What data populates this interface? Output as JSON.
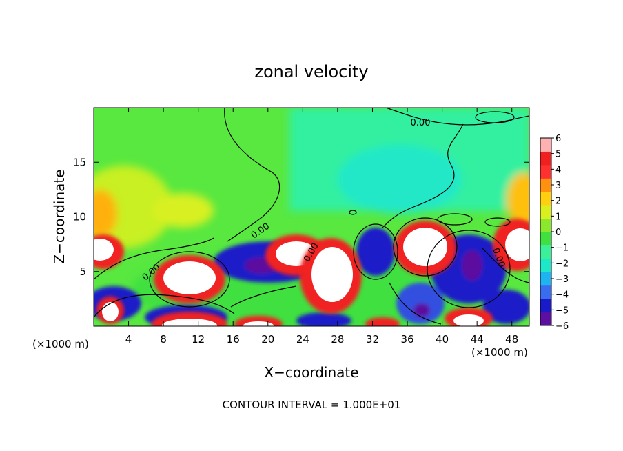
{
  "chart_data": {
    "type": "heatmap",
    "title": "zonal velocity",
    "xlabel": "X−coordinate",
    "ylabel": "Z−coordinate",
    "xunit_left": "(×1000 m)",
    "xunit_right": "(×1000 m)",
    "footer": "CONTOUR INTERVAL = 1.000E+01",
    "xlim": [
      0,
      50
    ],
    "ylim": [
      0,
      20
    ],
    "xticks": [
      4,
      8,
      12,
      16,
      20,
      24,
      28,
      32,
      36,
      40,
      44,
      48
    ],
    "yticks": [
      5,
      10,
      15
    ],
    "colorbar": {
      "min": -6,
      "max": 6,
      "labels": [
        "6",
        "5",
        "4",
        "3",
        "2",
        "1",
        "0",
        "−1",
        "−2",
        "−3",
        "−4",
        "−5",
        "−6"
      ],
      "colors": [
        "#5c0fa0",
        "#1a1ac8",
        "#3a6cf0",
        "#1fb4f0",
        "#1ee8c8",
        "#3cf09a",
        "#40e040",
        "#8ce82c",
        "#d8f020",
        "#ffd010",
        "#ff9010",
        "#ff3030",
        "#f02020",
        "#ffb0b0"
      ]
    },
    "contour_label": "0.00",
    "grid": false,
    "legend": "colorbar-right"
  }
}
